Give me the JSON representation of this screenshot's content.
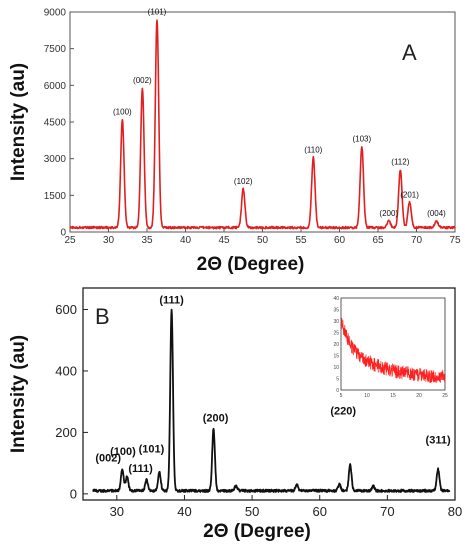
{
  "chart_data": [
    {
      "type": "line",
      "panel_label": "A",
      "xlabel": "2Θ (Degree)",
      "ylabel": "Intensity (au)",
      "xlim": [
        25,
        75
      ],
      "ylim": [
        0,
        9000
      ],
      "xticks": [
        "25",
        "30",
        "35",
        "40",
        "45",
        "50",
        "55",
        "60",
        "65",
        "70",
        "75"
      ],
      "yticks": [
        "0",
        "1500",
        "3000",
        "4500",
        "6000",
        "7500",
        "9000"
      ],
      "color": "#e02020",
      "baseline": 180,
      "peaks": [
        {
          "label": "(100)",
          "x": 31.8,
          "y": 4600
        },
        {
          "label": "(002)",
          "x": 34.4,
          "y": 5900
        },
        {
          "label": "(101)",
          "x": 36.3,
          "y": 8700
        },
        {
          "label": "(102)",
          "x": 47.5,
          "y": 1750
        },
        {
          "label": "(110)",
          "x": 56.6,
          "y": 3050
        },
        {
          "label": "(103)",
          "x": 62.9,
          "y": 3500
        },
        {
          "label": "(200)",
          "x": 66.4,
          "y": 450
        },
        {
          "label": "(112)",
          "x": 67.9,
          "y": 2550
        },
        {
          "label": "(201)",
          "x": 69.1,
          "y": 1200
        },
        {
          "label": "(004)",
          "x": 72.6,
          "y": 450
        }
      ]
    },
    {
      "type": "line",
      "panel_label": "B",
      "xlabel": "2Θ (Degree)",
      "ylabel": "Intensity (au)",
      "xlim": [
        25,
        80
      ],
      "ylim": [
        -20,
        670
      ],
      "xticks": [
        "30",
        "40",
        "50",
        "60",
        "70",
        "80"
      ],
      "yticks": [
        "0",
        "200",
        "400",
        "600"
      ],
      "color": "#111111",
      "baseline": 10,
      "peaks": [
        {
          "label": "(002)",
          "x": 30.8,
          "y": 80
        },
        {
          "label": "(100)",
          "x": 31.5,
          "y": 55
        },
        {
          "label": "(111)",
          "x": 34.4,
          "y": 45
        },
        {
          "label": "(101)",
          "x": 36.3,
          "y": 70
        },
        {
          "label": "(111)",
          "x": 38.1,
          "y": 600
        },
        {
          "label": "(200)",
          "x": 44.3,
          "y": 210
        },
        {
          "label": "",
          "x": 47.6,
          "y": 25
        },
        {
          "label": "",
          "x": 56.6,
          "y": 30
        },
        {
          "label": "",
          "x": 62.9,
          "y": 30
        },
        {
          "label": "(220)",
          "x": 64.5,
          "y": 95
        },
        {
          "label": "",
          "x": 67.9,
          "y": 25
        },
        {
          "label": "(311)",
          "x": 77.5,
          "y": 80
        }
      ],
      "inset": {
        "type": "line",
        "xlim": [
          5,
          25
        ],
        "ylim": [
          0,
          40
        ],
        "xticks": [
          "5",
          "10",
          "15",
          "20",
          "25"
        ],
        "yticks": [
          "0",
          "5",
          "10",
          "15",
          "20",
          "25",
          "30",
          "35",
          "40"
        ],
        "color": "#ff2020",
        "x": [
          5,
          6,
          7,
          8,
          9,
          10,
          12,
          14,
          16,
          18,
          20,
          22,
          25
        ],
        "y": [
          30,
          24,
          19,
          16,
          14,
          12.5,
          10.5,
          9,
          8,
          7.2,
          6.5,
          6,
          5.5
        ]
      }
    }
  ]
}
